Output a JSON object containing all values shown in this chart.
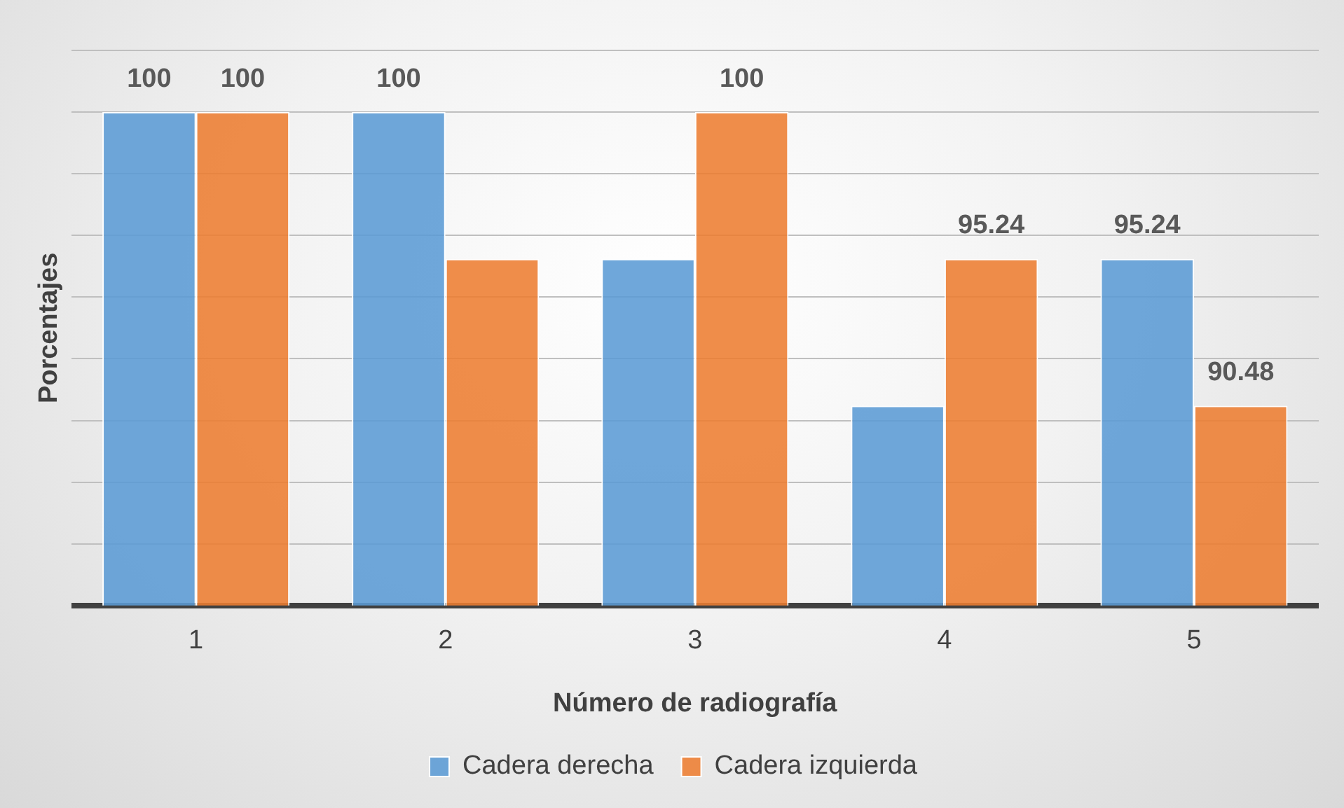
{
  "chart_data": {
    "type": "bar",
    "xlabel": "Número de radiografía",
    "ylabel": "Porcentajes",
    "categories": [
      "1",
      "2",
      "3",
      "4",
      "5"
    ],
    "series": [
      {
        "name": "Cadera derecha",
        "color": "#5b9bd5",
        "values": [
          100,
          100,
          95.24,
          90.48,
          95.24
        ],
        "value_labels": [
          "100",
          "100",
          null,
          null,
          "95.24"
        ]
      },
      {
        "name": "Cadera izquierda",
        "color": "#ed7d31",
        "values": [
          100,
          95.24,
          100,
          95.24,
          90.48
        ],
        "value_labels": [
          "100",
          null,
          "100",
          "95.24",
          "90.48"
        ]
      }
    ],
    "ylim": [
      84,
      102
    ],
    "yticks": [
      {
        "value": 84,
        "label": null
      },
      {
        "value": 86,
        "label": null
      },
      {
        "value": 88,
        "label": null
      },
      {
        "value": 90,
        "label": null
      },
      {
        "value": 92,
        "label": null
      },
      {
        "value": 94,
        "label": null
      },
      {
        "value": 96,
        "label": null
      },
      {
        "value": 98,
        "label": null
      },
      {
        "value": 100,
        "label": null
      },
      {
        "value": 102,
        "label": null
      }
    ],
    "tick_labels": "x",
    "grid": "y",
    "legend": "bottom"
  }
}
